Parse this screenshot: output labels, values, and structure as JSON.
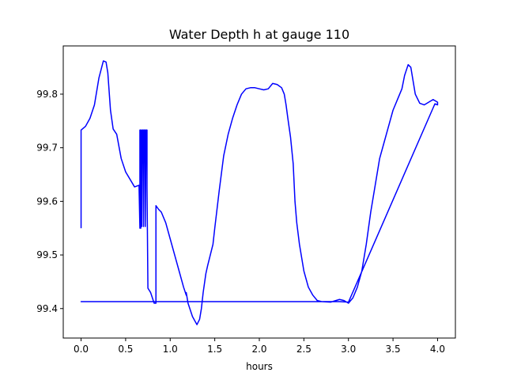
{
  "chart_data": {
    "type": "line",
    "title": "Water Depth h at gauge 110",
    "xlabel": "hours",
    "ylabel": "",
    "xlim": [
      -0.2,
      4.2
    ],
    "ylim": [
      99.345,
      99.89
    ],
    "xticks": [
      "0.0",
      "0.5",
      "1.0",
      "1.5",
      "2.0",
      "2.5",
      "3.0",
      "3.5",
      "4.0"
    ],
    "yticks": [
      "99.4",
      "99.5",
      "99.6",
      "99.7",
      "99.8"
    ],
    "grid": false,
    "legend": "none",
    "series": [
      {
        "color": "#0000ff",
        "x": [
          0.0,
          0.0,
          0.05,
          0.1,
          0.15,
          0.2,
          0.25,
          0.28,
          0.3,
          0.33,
          0.36,
          0.4,
          0.45,
          0.5,
          0.6,
          0.65,
          0.66,
          0.66,
          0.67,
          0.67,
          0.68,
          0.68,
          0.69,
          0.7,
          0.7,
          0.71,
          0.72,
          0.72,
          0.73,
          0.74,
          0.74,
          0.75,
          0.78,
          0.82,
          0.84,
          0.84,
          0.87,
          0.9,
          0.95,
          1.0,
          1.05,
          1.1,
          1.15,
          1.18,
          1.18,
          1.2,
          1.25,
          1.3,
          1.33,
          1.35,
          1.35,
          1.37,
          1.4,
          1.42,
          1.45,
          1.48,
          1.5,
          1.55,
          1.6,
          1.65,
          1.7,
          1.75,
          1.8,
          1.85,
          1.9,
          1.95,
          2.0,
          2.05,
          2.1,
          2.15,
          2.2,
          2.25,
          2.28,
          2.3,
          2.32,
          2.35,
          2.38,
          2.4,
          2.42,
          2.45,
          2.5,
          2.55,
          2.6,
          2.65,
          2.7,
          2.8,
          2.9,
          2.95,
          3.0,
          3.05,
          3.1,
          3.15,
          3.2,
          3.25,
          3.3,
          3.35,
          3.4,
          3.45,
          3.5,
          3.55,
          3.6,
          3.63,
          3.67,
          3.7,
          3.75,
          3.8,
          3.85,
          3.9,
          3.95,
          4.0,
          4.0,
          3.97,
          3.0,
          2.9,
          2.8,
          2.7,
          2.6,
          2.5,
          2.4,
          2.35,
          2.3,
          2.25,
          2.2,
          2.15,
          2.1,
          2.05,
          2.0,
          1.95,
          1.9,
          1.85,
          1.8,
          1.75,
          1.7,
          1.65,
          1.6,
          1.55,
          1.5,
          1.45,
          1.4,
          1.35,
          1.3,
          1.25,
          1.2,
          1.15,
          1.1,
          1.05,
          1.0,
          0.95,
          0.9,
          0.85,
          0.8,
          0.75,
          0.72,
          0.7,
          0.68,
          0.66,
          0.64,
          0.62,
          0.6,
          0.55,
          0.5,
          0.45,
          0.4,
          0.35,
          0.3,
          0.25,
          0.2,
          0.15,
          0.1,
          0.05,
          0.0,
          2.0,
          2.4
        ],
        "y": [
          99.55,
          99.733,
          99.74,
          99.755,
          99.78,
          99.83,
          99.862,
          99.86,
          99.84,
          99.77,
          99.735,
          99.725,
          99.68,
          99.655,
          99.627,
          99.63,
          99.55,
          99.733,
          99.733,
          99.55,
          99.733,
          99.553,
          99.733,
          99.733,
          99.553,
          99.733,
          99.733,
          99.553,
          99.733,
          99.733,
          99.625,
          99.438,
          99.43,
          99.41,
          99.41,
          99.592,
          99.585,
          99.58,
          99.56,
          99.53,
          99.5,
          99.47,
          99.44,
          99.425,
          99.43,
          99.41,
          99.385,
          99.37,
          99.38,
          99.4,
          99.4,
          99.43,
          99.465,
          99.48,
          99.5,
          99.52,
          99.55,
          99.62,
          99.685,
          99.725,
          99.755,
          99.78,
          99.8,
          99.81,
          99.812,
          99.812,
          99.81,
          99.808,
          99.81,
          99.82,
          99.818,
          99.812,
          99.8,
          99.78,
          99.755,
          99.72,
          99.67,
          99.6,
          99.56,
          99.52,
          99.47,
          99.44,
          99.425,
          99.415,
          99.413,
          99.412,
          99.417,
          99.415,
          99.41,
          99.42,
          99.44,
          99.47,
          99.52,
          99.58,
          99.63,
          99.68,
          99.71,
          99.74,
          99.77,
          99.79,
          99.81,
          99.835,
          99.855,
          99.85,
          99.8,
          99.783,
          99.78,
          99.785,
          99.79,
          99.785,
          99.78,
          99.782,
          99.412,
          99.413,
          99.413,
          99.413,
          99.413,
          99.413,
          99.413,
          99.413,
          99.413,
          99.413,
          99.413,
          99.413,
          99.413,
          99.413,
          99.413,
          99.413,
          99.413,
          99.413,
          99.413,
          99.413,
          99.413,
          99.413,
          99.413,
          99.413,
          99.413,
          99.413,
          99.413,
          99.413,
          99.413,
          99.413,
          99.413,
          99.413,
          99.413,
          99.413,
          99.413,
          99.413,
          99.413,
          99.413,
          99.413,
          99.413,
          99.413,
          99.413,
          99.413,
          99.413,
          99.413,
          99.413,
          99.413,
          99.413,
          99.413,
          99.413,
          99.413,
          99.413,
          99.413,
          99.413,
          99.413,
          99.413,
          99.413,
          99.413,
          99.413,
          99.413,
          99.413
        ]
      }
    ]
  }
}
